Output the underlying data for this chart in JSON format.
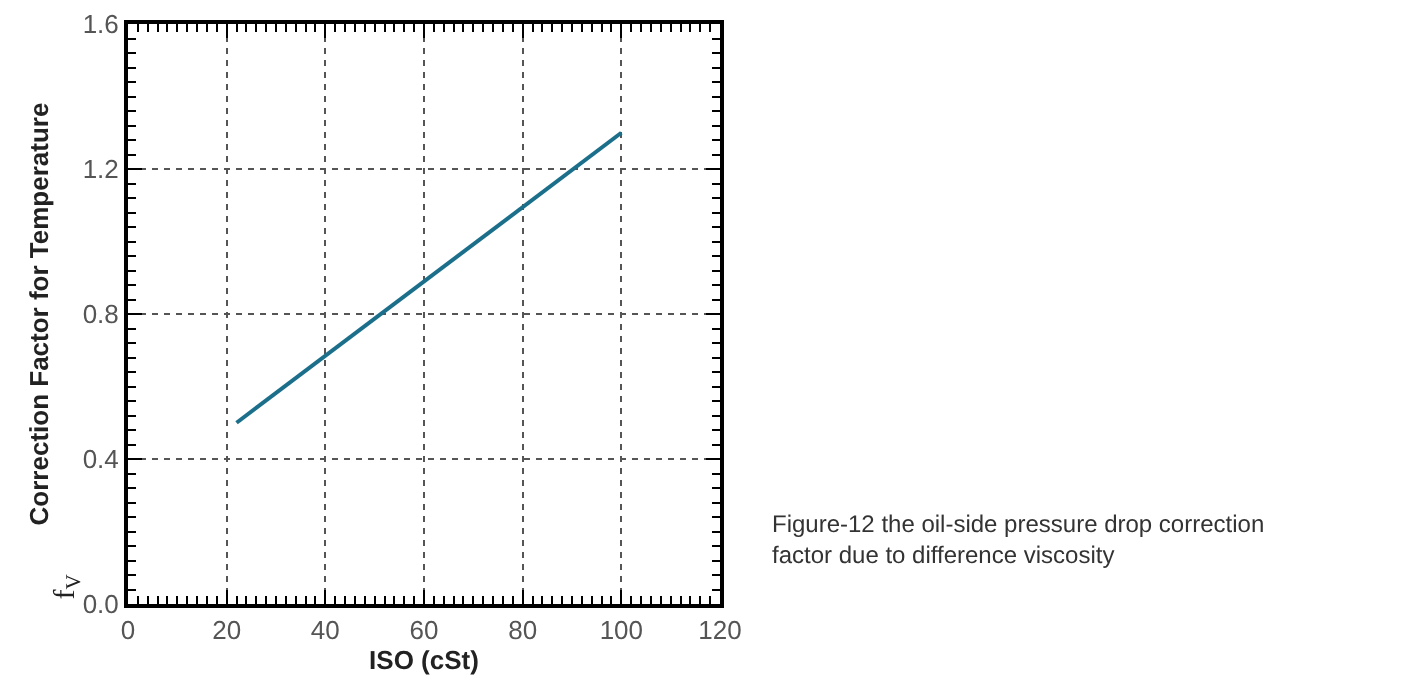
{
  "chart_data": {
    "type": "line",
    "xlabel": "ISO (cSt)",
    "ylabel": "Correction Factor for Temperature",
    "annotations": [
      "f$_{V}$",
      "Figure-12 the oil-side pressure drop correction factor due to difference viscosity"
    ],
    "x": [
      22,
      100
    ],
    "series": [
      {
        "color": "#1b6f8a",
        "values": [
          0.5,
          1.3
        ]
      }
    ],
    "xlim": [
      0,
      120
    ],
    "xticks": [
      0,
      20,
      40,
      60,
      80,
      100,
      120
    ],
    "ylim": [
      0,
      1.6
    ],
    "yticks": [
      {
        "value": 0,
        "label": "0.0"
      },
      0.4,
      0.8,
      1.2,
      1.6
    ],
    "grid": true,
    "marker": "none",
    "line_style": "solid"
  }
}
